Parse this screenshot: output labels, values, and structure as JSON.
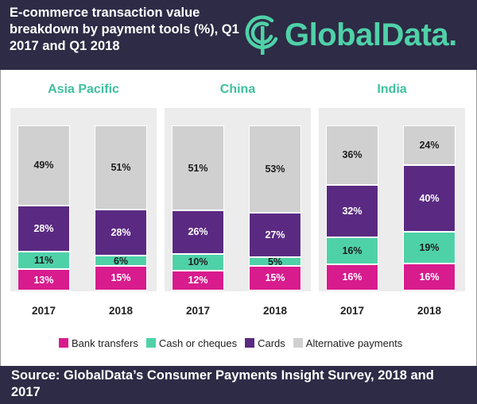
{
  "header": {
    "title": "E-commerce transaction value breakdown by payment tools (%), Q1 2017 and Q1 2018",
    "logo_text": "GlobalData."
  },
  "footer": {
    "source": "Source: GlobalData’s Consumer Payments Insight Survey, 2018 and 2017"
  },
  "colors": {
    "bank_transfers": "#d81b8d",
    "cash_or_cheques": "#4fd1a8",
    "cards": "#5a2a82",
    "alternative_payments": "#d0d0d0",
    "header_bg": "#2d2b45",
    "region_title": "#3fbf9e"
  },
  "chart_data": {
    "type": "bar",
    "stacked": true,
    "title": "E-commerce transaction value breakdown by payment tools (%), Q1 2017 and Q1 2018",
    "legend_position": "bottom",
    "series_names": [
      "Bank transfers",
      "Cash or cheques",
      "Cards",
      "Alternative payments"
    ],
    "groups": [
      {
        "region": "Asia Pacific",
        "bars": [
          {
            "year": "2017",
            "values": [
              13,
              11,
              28,
              49
            ],
            "labels": [
              "13%",
              "11%",
              "28%",
              "49%"
            ]
          },
          {
            "year": "2018",
            "values": [
              15,
              6,
              28,
              51
            ],
            "labels": [
              "15%",
              "6%",
              "28%",
              "51%"
            ]
          }
        ]
      },
      {
        "region": "China",
        "bars": [
          {
            "year": "2017",
            "values": [
              12,
              10,
              26,
              51
            ],
            "labels": [
              "12%",
              "10%",
              "26%",
              "51%"
            ]
          },
          {
            "year": "2018",
            "values": [
              15,
              5,
              27,
              53
            ],
            "labels": [
              "15%",
              "5%",
              "27%",
              "53%"
            ]
          }
        ]
      },
      {
        "region": "India",
        "bars": [
          {
            "year": "2017",
            "values": [
              16,
              16,
              32,
              36
            ],
            "labels": [
              "16%",
              "16%",
              "32%",
              "36%"
            ]
          },
          {
            "year": "2018",
            "values": [
              16,
              19,
              40,
              24
            ],
            "labels": [
              "16%",
              "19%",
              "40%",
              "24%"
            ]
          }
        ]
      }
    ]
  }
}
